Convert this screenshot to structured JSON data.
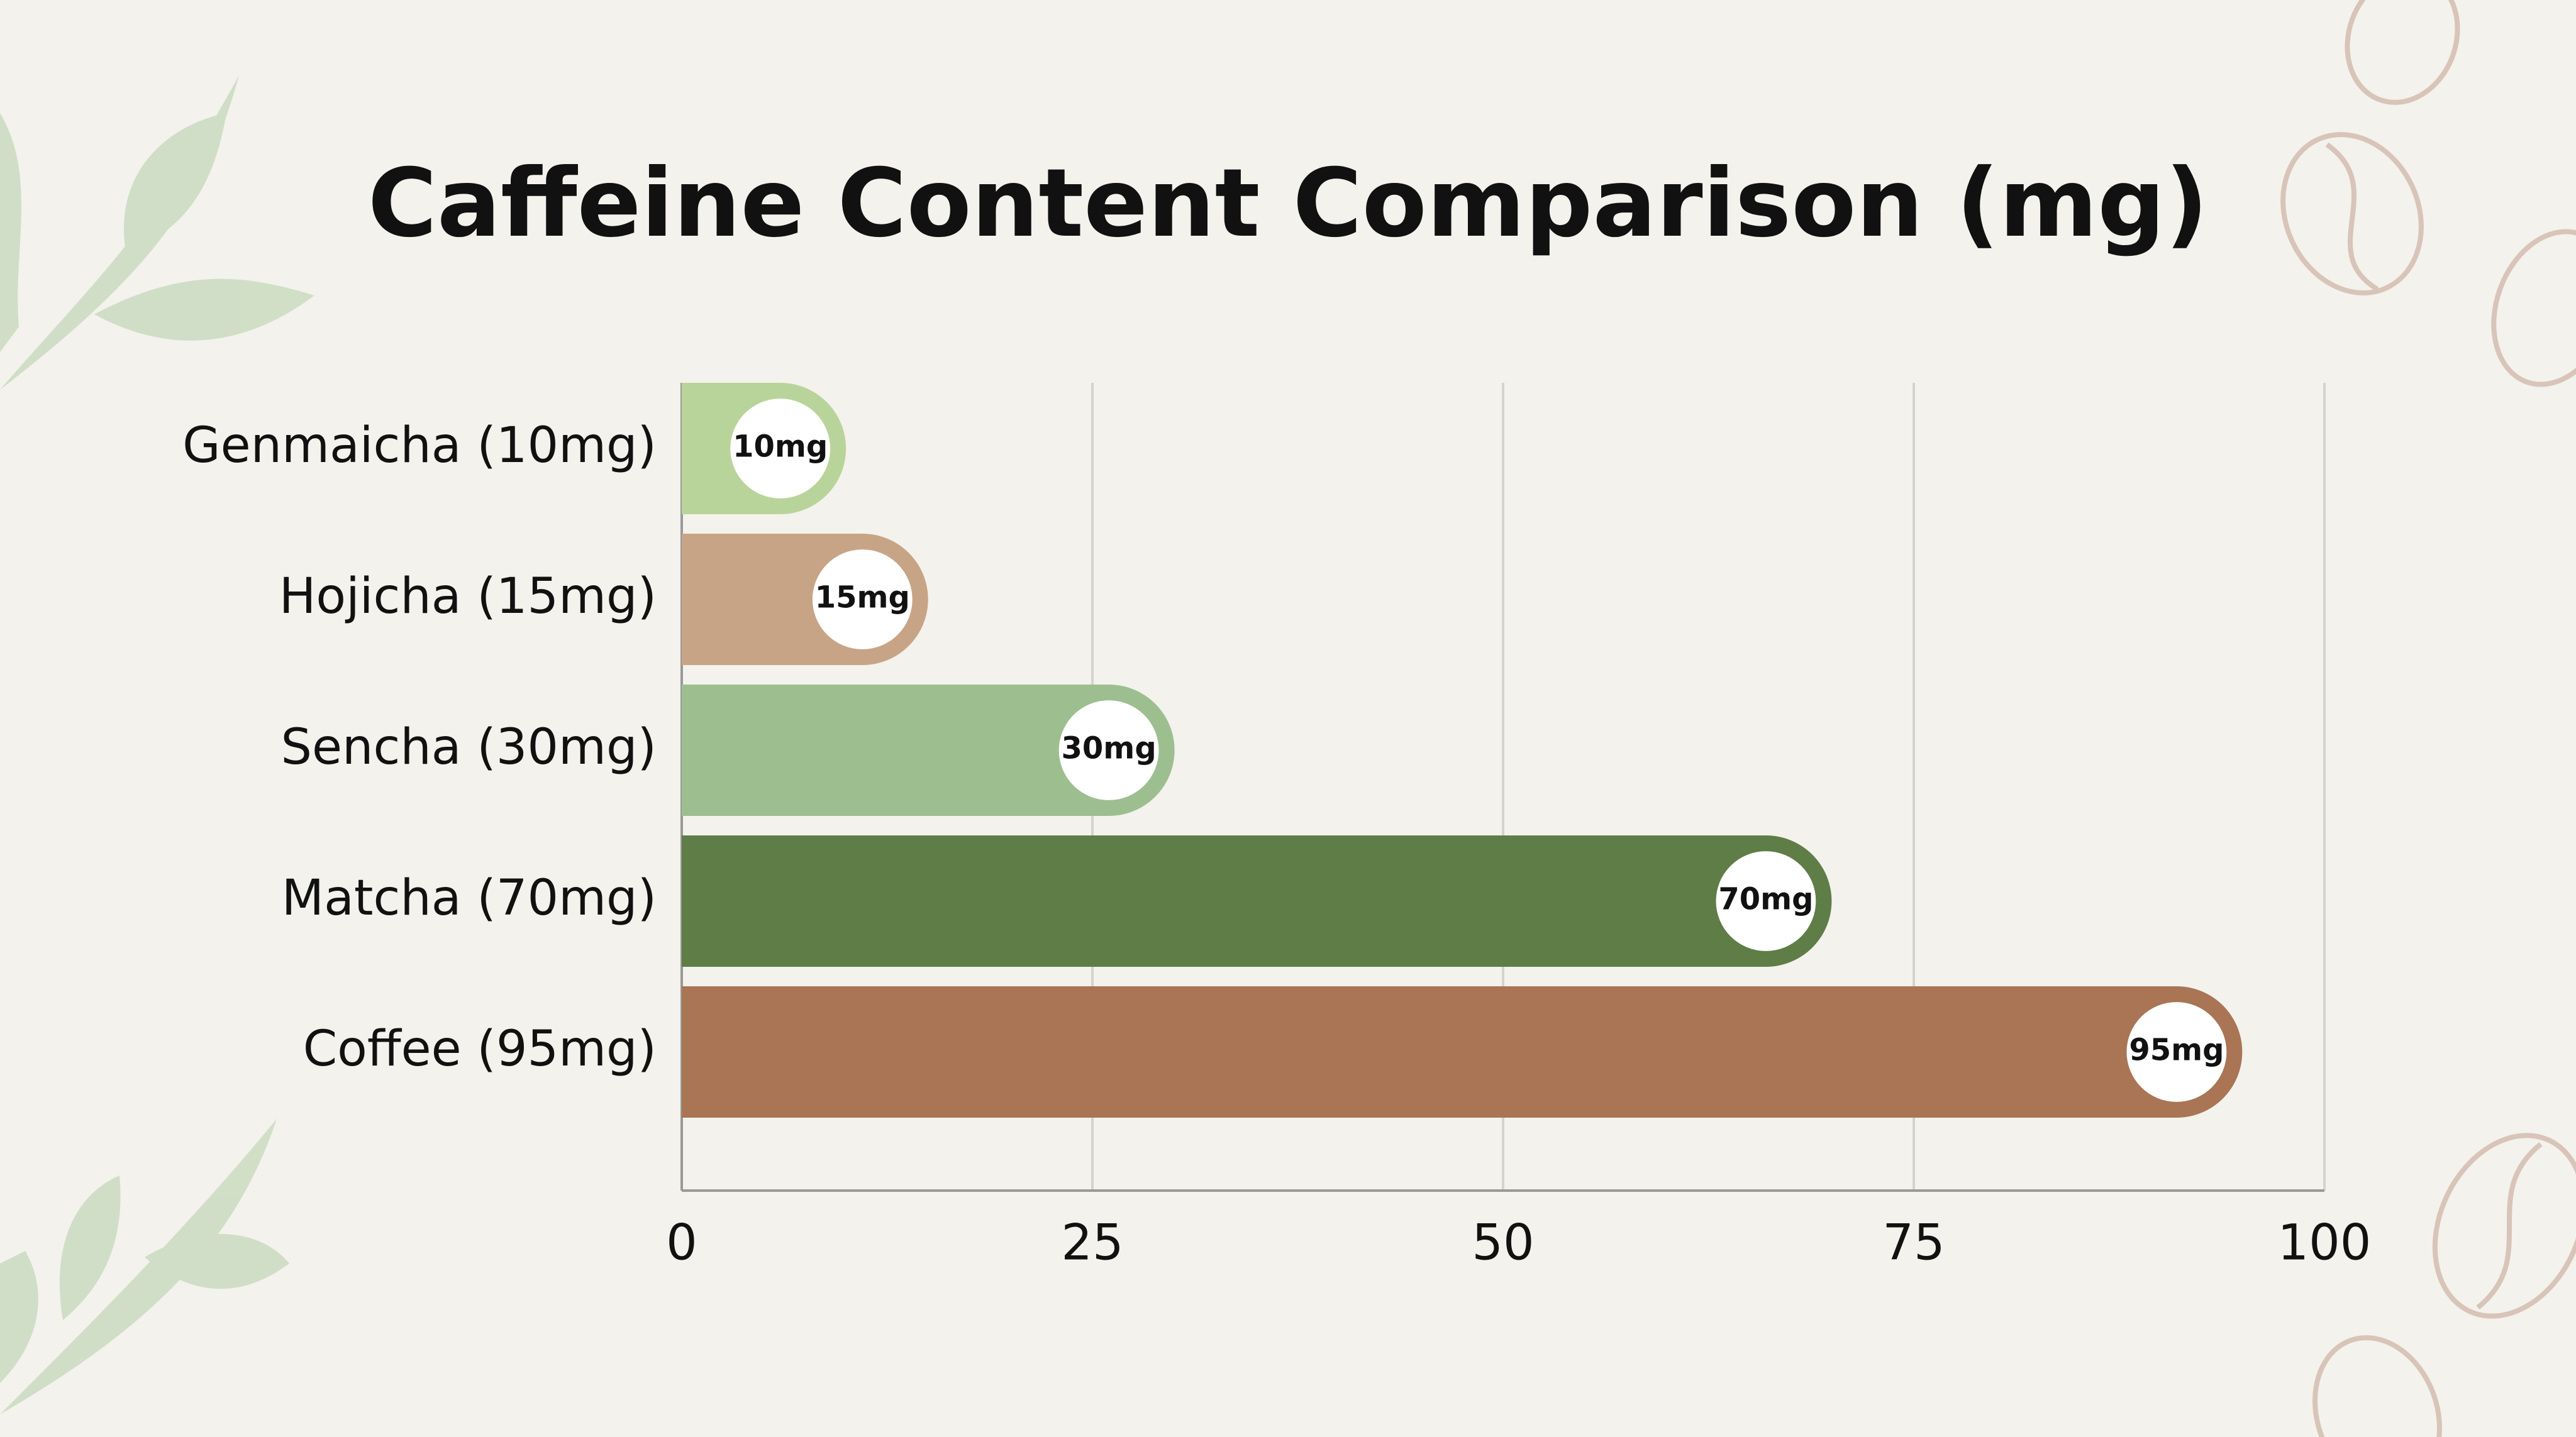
{
  "chart_data": {
    "type": "bar",
    "horizontal": true,
    "title": "Caffeine Content Comparison (mg)",
    "categories": [
      "Genmaicha (10mg)",
      "Hojicha (15mg)",
      "Sencha (30mg)",
      "Matcha (70mg)",
      "Coffee (95mg)"
    ],
    "values": [
      10,
      15,
      30,
      70,
      95
    ],
    "value_labels": [
      "10mg",
      "15mg",
      "30mg",
      "70mg",
      "95mg"
    ],
    "colors": [
      "#b9d49a",
      "#c8a486",
      "#9dbf90",
      "#5e7d47",
      "#a97555"
    ],
    "xlim": [
      0,
      100
    ],
    "xticks": [
      0,
      25,
      50,
      75,
      100
    ],
    "grid": true
  }
}
